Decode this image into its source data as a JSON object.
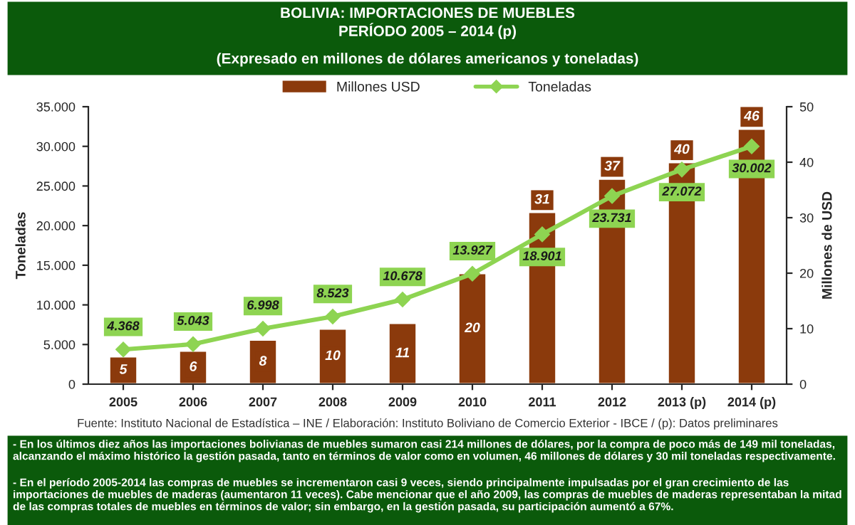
{
  "chart_data": {
    "type": "bar",
    "title": "BOLIVIA: IMPORTACIONES DE MUEBLES\nPERÍODO 2005 – 2014 (p)",
    "subtitle": "(Expresado en millones de dólares americanos y toneladas)",
    "ylabel": "Toneladas",
    "y2label": "Millones de USD",
    "categories": [
      "2005",
      "2006",
      "2007",
      "2008",
      "2009",
      "2010",
      "2011",
      "2012",
      "2013 (p)",
      "2014 (p)"
    ],
    "series": [
      {
        "name": "Millones USD",
        "axis": "y2",
        "color": "#8b3a0c",
        "values": [
          5,
          6,
          8,
          10,
          11,
          20,
          31,
          37,
          40,
          46
        ],
        "value_labels": [
          "5",
          "6",
          "8",
          "10",
          "11",
          "20",
          "31",
          "37",
          "40",
          "46"
        ]
      },
      {
        "name": "Toneladas",
        "type": "line",
        "axis": "y",
        "color": "#8ed452",
        "marker": "diamond",
        "values": [
          4368,
          5043,
          6998,
          8523,
          10678,
          13927,
          18901,
          23731,
          27072,
          30002
        ],
        "value_labels": [
          "4.368",
          "5.043",
          "6.998",
          "8.523",
          "10.678",
          "13.927",
          "18.901",
          "23.731",
          "27.072",
          "30.002"
        ]
      }
    ],
    "ylim": [
      0,
      35000
    ],
    "yticks": [
      {
        "value": 0,
        "label": "0"
      },
      {
        "value": 5000,
        "label": "5.000"
      },
      {
        "value": 10000,
        "label": "10.000"
      },
      {
        "value": 15000,
        "label": "15.000"
      },
      {
        "value": 20000,
        "label": "20.000"
      },
      {
        "value": 25000,
        "label": "25.000"
      },
      {
        "value": 30000,
        "label": "30.000"
      },
      {
        "value": 35000,
        "label": "35.000"
      }
    ],
    "y2lim": [
      0,
      50
    ],
    "y2ticks": [
      0,
      10,
      20,
      30,
      40,
      50
    ],
    "legend": "top",
    "annotations": [
      "Fuente: Instituto Nacional de Estadística – INE / Elaboración: Instituto Boliviano de Comercio Exterior - IBCE / (p): Datos preliminares",
      "- En los últimos diez años las importaciones bolivianas de muebles sumaron casi 214 millones de dólares, por la compra de poco más de 149 mil toneladas, alcanzando el máximo histórico la gestión pasada, tanto en términos de valor como en volumen, 46 millones de dólares y 30 mil toneladas respectivamente.",
      "- En el período 2005-2014 las compras de muebles se incrementaron casi 9 veces, siendo principalmente impulsadas por el gran crecimiento de las importaciones de muebles de maderas (aumentaron 11 veces). Cabe mencionar que el año 2009, las compras de muebles de maderas representaban la mitad de las compras totales de muebles en términos de valor; sin embargo, en la gestión pasada, su participación aumentó a 67%."
    ]
  }
}
